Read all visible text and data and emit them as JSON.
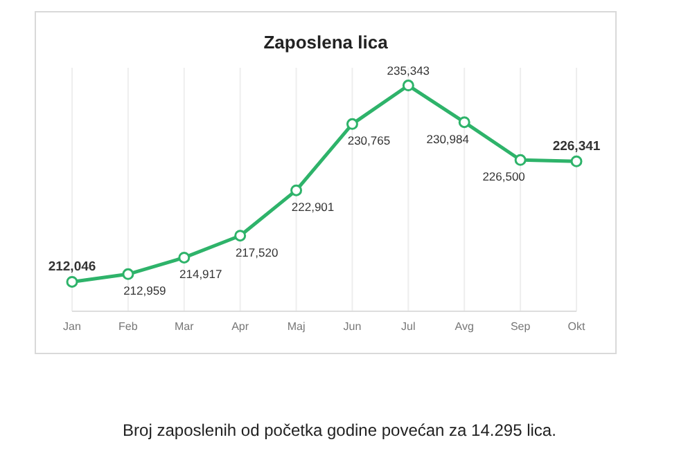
{
  "chart_data": {
    "type": "line",
    "title": "Zaposlena lica",
    "categories": [
      "Jan",
      "Feb",
      "Mar",
      "Apr",
      "Maj",
      "Jun",
      "Jul",
      "Avg",
      "Sep",
      "Okt"
    ],
    "series": [
      {
        "color": "#2eb36a",
        "values": [
          212046,
          212959,
          214917,
          217520,
          222901,
          230765,
          235343,
          230984,
          226500,
          226341
        ],
        "value_labels": [
          "212,046",
          "212,959",
          "214,917",
          "217,520",
          "222,901",
          "230,765",
          "235,343",
          "230,984",
          "226,500",
          "226,341"
        ]
      }
    ],
    "marker": "circle",
    "line_style": "solid",
    "grid": "x",
    "annotations": [
      "Broj zaposlenih od početka godine povećan za 14.295 lica."
    ]
  }
}
